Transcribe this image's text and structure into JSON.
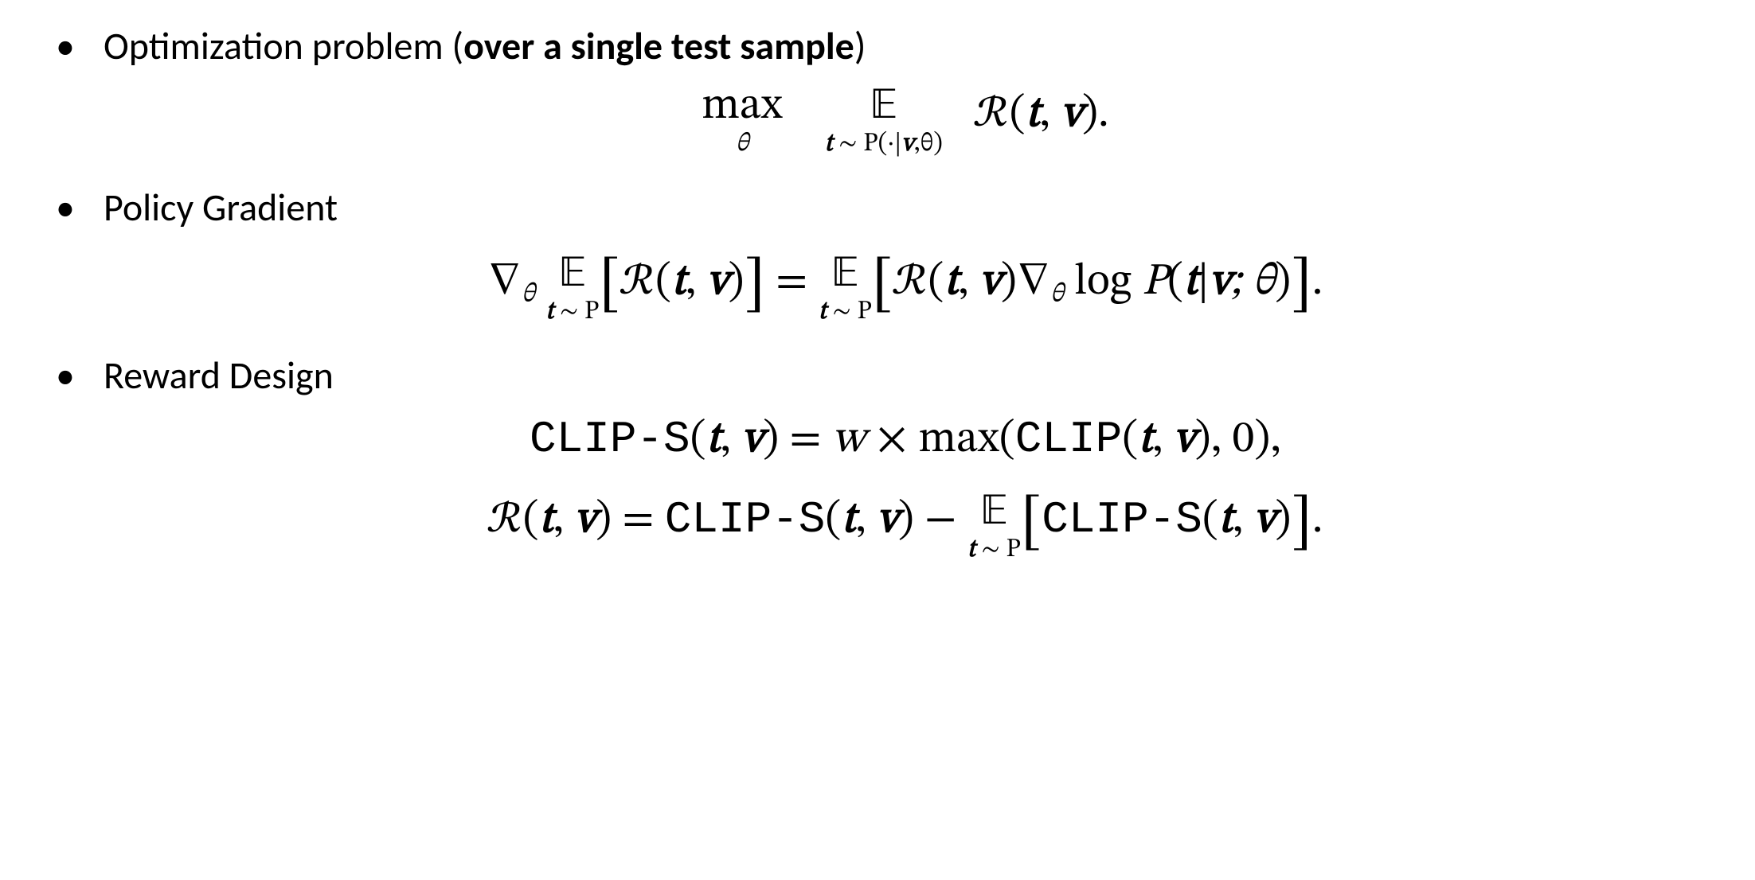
{
  "text_font_family": "Calibri, Segoe UI, Arial, sans-serif",
  "math_font_family": "Cambria Math, STIX Two Math, Times New Roman, serif",
  "mono_font_family": "Courier New, monospace",
  "text_color": "#000000",
  "background_color": "#ffffff",
  "heading_fontsize_pt": 36,
  "math_fontsize_pt": 42,
  "bullets": [
    {
      "heading_plain": "Optimization problem (",
      "heading_bold": "over a single test sample",
      "heading_tail": ")",
      "equations": [
        {
          "description": "max over theta of expectation over t~P(.|v,theta) of R(t,v).",
          "operator1_top": "max",
          "operator1_bottom": "θ",
          "operator2_top": "𝔼",
          "operator2_bottom_prefix": "t",
          "operator2_bottom_mid": " ∼ P(·|",
          "operator2_bottom_v": "v",
          "operator2_bottom_suffix": ",θ)",
          "reward_symbol": "ℛ",
          "arg_t": "t",
          "arg_v": "v",
          "trailing": "."
        }
      ]
    },
    {
      "heading_plain": "Policy Gradient",
      "heading_bold": "",
      "heading_tail": "",
      "equations": [
        {
          "description": "grad_theta E_{t~P}[R(t,v)] = E_{t~P}[R(t,v) grad_theta log P(t|v;theta)].",
          "nabla": "∇",
          "theta_sub": "θ",
          "E_symbol": "𝔼",
          "E_sub_prefix": "t",
          "E_sub_suffix": " ∼ P",
          "reward_symbol": "ℛ",
          "arg_t": "t",
          "arg_v": "v",
          "eq": " = ",
          "log": " log ",
          "P": "P",
          "lparen_args_sep": "|",
          "semitheta": "; θ",
          "trailing": "."
        }
      ]
    },
    {
      "heading_plain": "Reward Design",
      "heading_bold": "",
      "heading_tail": "",
      "equations": [
        {
          "description": "CLIP-S(t,v) = w * max(CLIP(t,v), 0),",
          "fn_clip_s": "CLIP-S",
          "arg_t": "t",
          "arg_v": "v",
          "eq": " = ",
          "w": "w",
          "times": " × ",
          "max": "max",
          "fn_clip": "CLIP",
          "zero": "0",
          "trailing": ","
        },
        {
          "description": "R(t,v) = CLIP-S(t,v) - E_{t~P}[CLIP-S(t,v)].",
          "reward_symbol": "ℛ",
          "arg_t": "t",
          "arg_v": "v",
          "eq": " = ",
          "fn_clip_s": "CLIP-S",
          "minus": " − ",
          "E_symbol": "𝔼",
          "E_sub_prefix": "t",
          "E_sub_suffix": " ∼ P",
          "trailing": "."
        }
      ]
    }
  ]
}
